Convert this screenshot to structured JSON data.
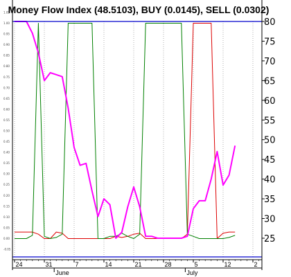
{
  "chart_data": {
    "type": "line",
    "title": "Money Flow Index (48.5103), BUY (0.0145), SELL (0.0302)",
    "colors": {
      "mfi": "#ff00ff",
      "buy": "#008000",
      "sell": "#dd0000",
      "border": "#0000cc",
      "grid": "#b0b0b0"
    },
    "right_axis": {
      "ylim": [
        21,
        80
      ],
      "ticks": [
        "80",
        "75",
        "70",
        "65",
        "60",
        "55",
        "50",
        "45",
        "40",
        "35",
        "30",
        "25"
      ],
      "tick_values": [
        80,
        75,
        70,
        65,
        60,
        55,
        50,
        45,
        40,
        35,
        30,
        25
      ]
    },
    "left_axis": {
      "ylim": [
        -0.05,
        1.0
      ],
      "ticks": [
        "1.05",
        "1.00",
        "0.95",
        "0.90",
        "0.85",
        "0.80",
        "0.75",
        "0.70",
        "0.65",
        "0.60",
        "0.55",
        "0.50",
        "0.45",
        "0.40",
        "0.35",
        "0.30",
        "0.25",
        "0.20",
        "0.15",
        "0.10",
        "0.05",
        "0.00",
        "-0.05"
      ],
      "tick_values": [
        1.05,
        1.0,
        0.95,
        0.9,
        0.85,
        0.8,
        0.75,
        0.7,
        0.65,
        0.6,
        0.55,
        0.5,
        0.45,
        0.4,
        0.35,
        0.3,
        0.25,
        0.2,
        0.15,
        0.1,
        0.05,
        0.0,
        -0.05
      ]
    },
    "x_axis": {
      "ticks": [
        {
          "label": "24",
          "index": 0
        },
        {
          "label": "31",
          "index": 5
        },
        {
          "label": "7",
          "index": 10
        },
        {
          "label": "14",
          "index": 15
        },
        {
          "label": "21",
          "index": 20
        },
        {
          "label": "28",
          "index": 25
        },
        {
          "label": "5",
          "index": 30
        },
        {
          "label": "12",
          "index": 35
        },
        {
          "label": "2",
          "index": 40
        }
      ],
      "months": [
        {
          "label": "June",
          "index": 7
        },
        {
          "label": "July",
          "index": 29
        }
      ],
      "n_slots": 42
    },
    "series": [
      {
        "key": "mfi",
        "axis": "right",
        "values": [
          80,
          80,
          80,
          77,
          72,
          65,
          67,
          66.5,
          66,
          58,
          48,
          43.5,
          44,
          37,
          30.5,
          35,
          33.5,
          25,
          26.5,
          33,
          38,
          33,
          25.5,
          25.5,
          25,
          25,
          25,
          25,
          25,
          25.5,
          32.5,
          34.5,
          34.5,
          40,
          47,
          38.5,
          41,
          48.5
        ]
      },
      {
        "key": "buy",
        "axis": "left",
        "values": [
          0.0,
          0.0,
          0.0,
          0.015,
          1.0,
          0.01,
          0.0,
          0.005,
          0.02,
          1.0,
          1.0,
          1.0,
          1.0,
          1.0,
          0.0,
          0.0,
          0.01,
          0.01,
          0.025,
          0.01,
          0.0,
          0.02,
          1.0,
          1.0,
          1.0,
          1.0,
          1.0,
          1.0,
          1.0,
          0.02,
          0.01,
          0.0,
          0.0,
          0.0,
          0.0,
          0.0,
          0.005,
          0.0145
        ]
      },
      {
        "key": "sell",
        "axis": "left",
        "values": [
          0.03,
          0.03,
          0.03,
          0.03,
          0.02,
          0.0,
          0.0,
          0.03,
          0.025,
          0.0,
          0.0,
          0.0,
          0.0,
          0.0,
          0.0,
          0.0,
          0.0,
          0.01,
          0.005,
          0.01,
          0.02,
          0.025,
          0.0,
          0.0,
          0.0,
          0.0,
          0.0,
          0.0,
          0.0,
          0.02,
          1.0,
          1.0,
          1.0,
          1.0,
          0.0,
          0.025,
          0.03,
          0.0302
        ]
      }
    ]
  }
}
